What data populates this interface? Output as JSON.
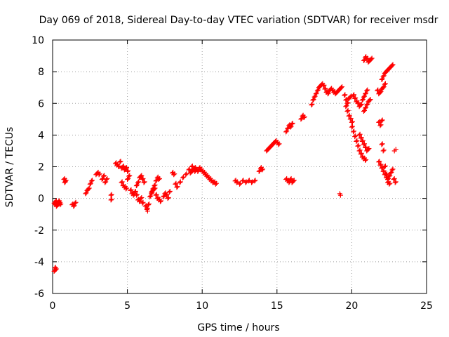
{
  "chart_data": {
    "type": "scatter",
    "title": "Day 069 of 2018, Sidereal Day-to-day VTEC variation (SDTVAR) for receiver msdr",
    "xlabel": "GPS time / hours",
    "ylabel": "SDTVAR / TECUs",
    "xlim": [
      0,
      25
    ],
    "ylim": [
      -6,
      10
    ],
    "xticks": [
      "0",
      "5",
      "10",
      "15",
      "20",
      "25"
    ],
    "yticks": [
      "-6",
      "-4",
      "-2",
      "0",
      "2",
      "4",
      "6",
      "8",
      "10"
    ],
    "grid": true,
    "marker": "plus",
    "color": "#ff0000",
    "series": [
      {
        "name": "SDTVAR",
        "x": [
          0.1,
          0.15,
          0.2,
          0.25,
          0.3,
          0.35,
          0.4,
          0.45,
          0.5,
          0.1,
          0.15,
          0.2,
          0.75,
          0.8,
          0.85,
          1.3,
          1.4,
          1.5,
          2.2,
          2.3,
          2.4,
          2.5,
          2.6,
          2.9,
          3.0,
          3.1,
          3.3,
          3.4,
          3.5,
          3.6,
          3.9,
          3.9,
          4.2,
          4.3,
          4.4,
          4.5,
          4.6,
          4.7,
          4.8,
          4.9,
          5.0,
          4.6,
          4.7,
          4.8,
          4.9,
          5.0,
          5.1,
          5.2,
          5.3,
          5.4,
          5.5,
          5.6,
          5.7,
          5.8,
          5.9,
          6.0,
          6.1,
          5.6,
          5.7,
          5.8,
          5.9,
          6.0,
          6.2,
          6.3,
          6.4,
          6.5,
          6.6,
          6.7,
          6.8,
          6.9,
          7.0,
          7.1,
          6.6,
          6.7,
          6.8,
          6.9,
          7.0,
          7.1,
          7.2,
          7.4,
          7.5,
          7.6,
          7.7,
          7.8,
          8.0,
          8.1,
          8.2,
          8.3,
          8.5,
          8.7,
          8.9,
          9.1,
          9.3,
          9.5,
          9.2,
          9.3,
          9.4,
          9.5,
          9.6,
          9.7,
          9.8,
          9.9,
          10.0,
          10.1,
          10.2,
          10.3,
          10.4,
          10.5,
          10.6,
          10.7,
          10.8,
          10.9,
          12.2,
          12.3,
          12.5,
          12.7,
          12.9,
          13.1,
          13.3,
          13.5,
          13.8,
          13.9,
          14.0,
          14.3,
          14.4,
          14.5,
          14.6,
          14.7,
          14.8,
          14.9,
          15.0,
          15.1,
          15.6,
          15.7,
          15.8,
          15.9,
          16.0,
          15.6,
          15.7,
          15.8,
          15.9,
          16.0,
          16.1,
          16.6,
          16.7,
          16.8,
          17.3,
          17.4,
          17.5,
          17.6,
          17.7,
          17.8,
          17.9,
          18.0,
          18.1,
          18.2,
          18.3,
          18.4,
          18.5,
          18.6,
          18.7,
          18.8,
          18.9,
          19.0,
          19.1,
          19.2,
          19.3,
          19.5,
          19.6,
          19.7,
          19.8,
          19.9,
          19.6,
          19.7,
          19.8,
          19.9,
          20.0,
          20.0,
          20.1,
          20.2,
          20.3,
          20.4,
          20.5,
          20.6,
          20.7,
          20.8,
          20.9,
          20.1,
          20.2,
          20.3,
          20.4,
          20.5,
          20.6,
          20.7,
          20.8,
          20.9,
          21.0,
          20.5,
          20.6,
          20.7,
          20.8,
          20.9,
          21.0,
          21.1,
          20.8,
          20.9,
          21.0,
          21.1,
          21.2,
          21.3,
          20.8,
          20.9,
          21.0,
          21.1,
          21.2,
          21.7,
          21.8,
          21.9,
          22.0,
          22.1,
          22.2,
          21.8,
          21.9,
          22.0,
          21.8,
          21.9,
          22.0,
          22.1,
          22.2,
          22.3,
          22.4,
          22.5,
          22.6,
          22.7,
          22.0,
          22.1,
          22.2,
          22.3,
          22.4,
          22.5,
          22.6,
          22.7,
          22.0,
          22.1,
          22.2,
          22.3,
          22.4,
          22.5,
          22.8,
          22.9
        ],
        "y": [
          -0.3,
          -0.4,
          -0.2,
          -0.5,
          -0.3,
          -0.4,
          -0.2,
          -0.3,
          -0.4,
          -4.6,
          -4.4,
          -4.5,
          1.2,
          1.0,
          1.1,
          -0.4,
          -0.5,
          -0.3,
          0.3,
          0.5,
          0.6,
          0.9,
          1.1,
          1.5,
          1.6,
          1.5,
          1.2,
          1.4,
          1.0,
          1.2,
          0.2,
          -0.1,
          2.2,
          2.1,
          2.0,
          2.3,
          1.9,
          2.0,
          1.8,
          1.9,
          1.7,
          1.0,
          0.8,
          0.7,
          0.6,
          1.2,
          1.4,
          0.5,
          0.3,
          0.2,
          0.4,
          0.8,
          1.0,
          1.3,
          1.4,
          1.2,
          1.0,
          0.2,
          -0.1,
          -0.2,
          0.0,
          -0.3,
          -0.5,
          -0.7,
          -0.4,
          0.1,
          0.4,
          0.6,
          0.8,
          1.1,
          1.3,
          1.2,
          0.3,
          0.5,
          0.6,
          0.2,
          0.0,
          -0.1,
          -0.2,
          0.1,
          0.3,
          0.2,
          0.0,
          0.4,
          1.6,
          1.5,
          0.9,
          0.7,
          1.0,
          1.3,
          1.5,
          1.8,
          2.0,
          1.7,
          1.6,
          1.7,
          1.8,
          1.9,
          1.8,
          1.7,
          1.9,
          1.8,
          1.7,
          1.6,
          1.5,
          1.4,
          1.3,
          1.2,
          1.1,
          1.0,
          1.0,
          0.9,
          1.1,
          1.0,
          0.9,
          1.1,
          1.0,
          1.1,
          1.0,
          1.1,
          1.7,
          1.9,
          1.8,
          3.0,
          3.1,
          3.2,
          3.3,
          3.4,
          3.5,
          3.6,
          3.5,
          3.4,
          4.2,
          4.4,
          4.6,
          4.5,
          4.7,
          1.2,
          1.1,
          1.0,
          1.2,
          1.0,
          1.1,
          5.0,
          5.2,
          5.1,
          5.9,
          6.2,
          6.4,
          6.6,
          6.8,
          7.0,
          7.1,
          7.2,
          7.1,
          6.9,
          6.7,
          6.6,
          6.8,
          6.9,
          6.8,
          6.7,
          6.6,
          6.7,
          6.8,
          6.9,
          7.0,
          6.5,
          6.2,
          6.0,
          6.3,
          6.4,
          5.8,
          5.5,
          5.2,
          5.0,
          4.8,
          4.5,
          4.2,
          3.9,
          3.6,
          3.3,
          3.0,
          2.8,
          2.6,
          2.5,
          2.4,
          6.5,
          6.3,
          6.1,
          6.0,
          5.8,
          5.9,
          6.2,
          6.4,
          6.6,
          6.8,
          4.0,
          3.8,
          3.6,
          3.4,
          3.2,
          3.0,
          3.1,
          8.7,
          8.9,
          8.8,
          8.6,
          8.7,
          8.8,
          5.5,
          5.7,
          5.9,
          6.1,
          6.2,
          6.8,
          6.6,
          6.7,
          6.9,
          7.0,
          7.2,
          4.8,
          4.6,
          4.9,
          2.3,
          2.1,
          1.9,
          1.7,
          1.5,
          1.3,
          1.2,
          1.4,
          1.6,
          1.8,
          7.5,
          7.7,
          7.9,
          8.0,
          8.1,
          8.2,
          8.3,
          8.4,
          3.4,
          3.0,
          2.0,
          1.5,
          1.0,
          0.9,
          1.2,
          1.0
        ]
      }
    ]
  },
  "extra_points": {
    "x": [
      22.85,
      22.95,
      19.2,
      19.25,
      6.3,
      6.35
    ],
    "y": [
      3.0,
      3.1,
      0.3,
      0.2,
      -0.6,
      -0.8
    ]
  }
}
